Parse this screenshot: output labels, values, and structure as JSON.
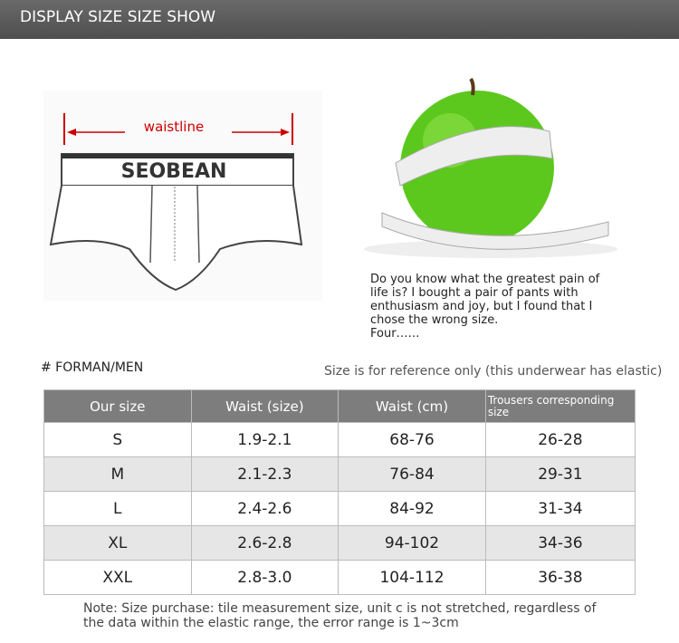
{
  "header": {
    "title": "DISPLAY SIZE SIZE SHOW"
  },
  "diagram": {
    "label": "waistline",
    "brand": "SEOBEAN"
  },
  "caption": {
    "lines": [
      "Do you know what the greatest pain of",
      "life is? I bought a pair of pants with",
      "enthusiasm and joy, but I found that I",
      "chose the wrong size.",
      "Four……"
    ]
  },
  "section": {
    "label": "# FORMAN/MEN",
    "remark": "Size is for reference only (this underwear has elastic)"
  },
  "table": {
    "headers": [
      "Our size",
      "Waist (size)",
      "Waist (cm)",
      "Trousers corresponding size"
    ],
    "rows": [
      [
        "S",
        "1.9-2.1",
        "68-76",
        "26-28"
      ],
      [
        "M",
        "2.1-2.3",
        "76-84",
        "29-31"
      ],
      [
        "L",
        "2.4-2.6",
        "84-92",
        "31-34"
      ],
      [
        "XL",
        "2.6-2.8",
        "94-102",
        "34-36"
      ],
      [
        "XXL",
        "2.8-3.0",
        "104-112",
        "36-38"
      ]
    ]
  },
  "note": {
    "lines": [
      "Note: Size purchase: tile measurement size, unit c is not stretched, regardless of",
      "the data within the elastic range, the error range is 1~3cm"
    ]
  }
}
